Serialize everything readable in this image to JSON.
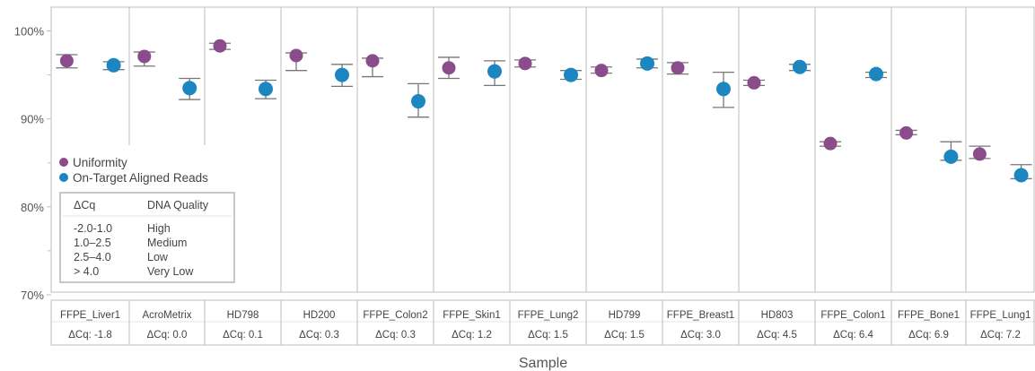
{
  "chart_data": {
    "type": "scatter",
    "xlabel": "Sample",
    "ylabel": "",
    "ylim": [
      70,
      100
    ],
    "y_ticks": [
      "100%",
      "90%",
      "80%",
      "70%"
    ],
    "y_tick_values": [
      100,
      90,
      80,
      70
    ],
    "categories": [
      "FFPE_Liver1",
      "AcroMetrix",
      "HD798",
      "HD200",
      "FFPE_Colon2",
      "FFPE_Skin1",
      "FFPE_Lung2",
      "HD799",
      "FFPE_Breast1",
      "HD803",
      "FFPE_Colon1",
      "FFPE_Bone1",
      "FFPE_Lung1"
    ],
    "category_sublabels": [
      "ΔCq: -1.8",
      "ΔCq: 0.0",
      "ΔCq: 0.1",
      "ΔCq: 0.3",
      "ΔCq: 0.3",
      "ΔCq: 1.2",
      "ΔCq: 1.5",
      "ΔCq: 1.5",
      "ΔCq: 3.0",
      "ΔCq: 4.5",
      "ΔCq: 6.4",
      "ΔCq: 6.9",
      "ΔCq: 7.2"
    ],
    "series": [
      {
        "name": "Uniformity",
        "color": "#8b4c8c",
        "values": [
          96.6,
          97.1,
          98.3,
          97.2,
          96.6,
          95.8,
          96.3,
          95.5,
          95.8,
          94.1,
          87.2,
          88.4,
          86.0
        ],
        "error_low": [
          95.8,
          96.0,
          97.9,
          95.5,
          94.8,
          94.6,
          95.9,
          95.2,
          95.1,
          93.8,
          86.9,
          88.2,
          85.5
        ],
        "error_high": [
          97.3,
          97.6,
          98.6,
          97.5,
          96.9,
          97.0,
          96.7,
          95.9,
          96.4,
          94.4,
          87.4,
          88.7,
          86.9
        ]
      },
      {
        "name": "On-Target Aligned Reads",
        "color": "#1b86c0",
        "values": [
          96.1,
          93.5,
          93.4,
          95.0,
          92.0,
          95.4,
          95.0,
          96.3,
          93.4,
          95.9,
          95.1,
          85.7,
          83.6
        ],
        "error_low": [
          95.6,
          92.2,
          92.3,
          93.7,
          90.2,
          93.8,
          94.5,
          95.8,
          91.3,
          95.5,
          94.7,
          85.3,
          83.2
        ],
        "error_high": [
          96.5,
          94.6,
          94.4,
          96.2,
          94.0,
          96.6,
          95.5,
          96.8,
          95.3,
          96.2,
          95.3,
          87.4,
          84.8
        ]
      }
    ],
    "legend": [
      "Uniformity",
      "On-Target Aligned Reads"
    ],
    "legend_position": "lower-left"
  },
  "table": {
    "headers": [
      "ΔCq",
      "DNA Quality"
    ],
    "rows": [
      [
        "-2.0-1.0",
        "High"
      ],
      [
        "1.0–2.5",
        "Medium"
      ],
      [
        "2.5–4.0",
        "Low"
      ],
      [
        "> 4.0",
        "Very Low"
      ]
    ]
  }
}
